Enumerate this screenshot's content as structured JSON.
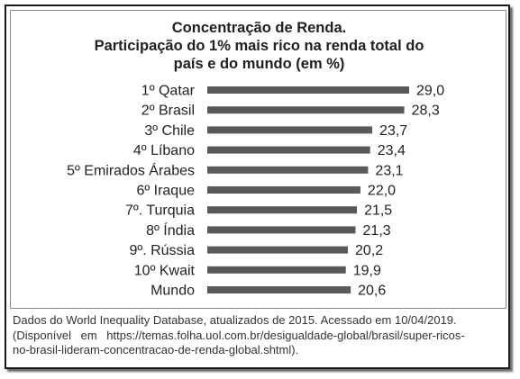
{
  "chart_data": {
    "type": "bar",
    "orientation": "horizontal",
    "title_lines": [
      "Concentração de Renda.",
      "Participação do 1% mais rico na renda total do",
      "país e do mundo (em %)"
    ],
    "categories": [
      "1º Qatar",
      "2º Brasil",
      "3º Chile",
      "4º Líbano",
      "5º Emirados Árabes",
      "6º Iraque",
      "7º. Turquia",
      "8º Índia",
      "9º. Rússia",
      "10º Kwait",
      "Mundo"
    ],
    "values": [
      29.0,
      28.3,
      23.7,
      23.4,
      23.1,
      22.0,
      21.5,
      21.3,
      20.2,
      19.9,
      20.6
    ],
    "value_labels": [
      "29,0",
      "28,3",
      "23,7",
      "23,4",
      "23,1",
      "22,0",
      "21,5",
      "21,3",
      "20,2",
      "19,9",
      "20,6"
    ],
    "bar_color": "#595959",
    "xlim": [
      0,
      29
    ],
    "xlabel": "",
    "ylabel": "",
    "grid": false,
    "legend": "none"
  },
  "source_lines": [
    "Dados do World Inequality Database, atualizados de 2015. Acessado em 10/04/2019.",
    "(Disponível em https://temas.folha.uol.com.br/desigualdade-global/brasil/super-ricos-",
    "no-brasil-lideram-concentracao-de-renda-global.shtml)."
  ]
}
